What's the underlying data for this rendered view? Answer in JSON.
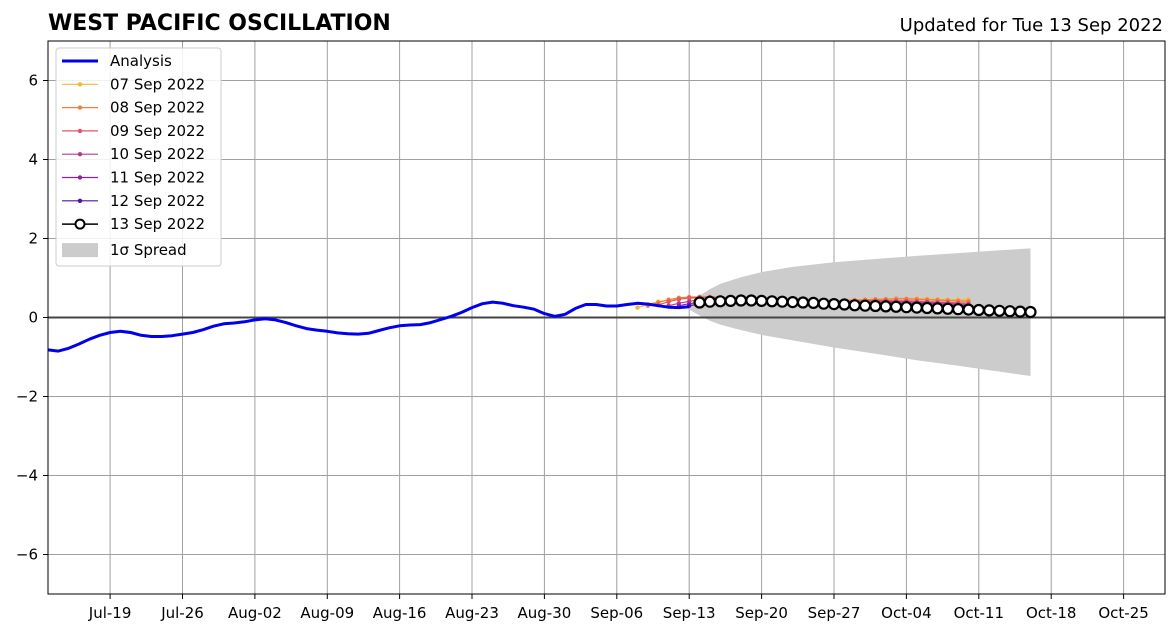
{
  "chart_data": {
    "type": "line",
    "title": "WEST PACIFIC OSCILLATION",
    "subtitle": "Updated for Tue 13 Sep 2022",
    "xlabel": "",
    "ylabel": "",
    "x_range": [
      "2022-07-13",
      "2022-10-29"
    ],
    "ylim": [
      -7,
      7
    ],
    "y_ticks": [
      -6,
      -4,
      -2,
      0,
      2,
      4,
      6
    ],
    "y_tick_labels": [
      "−6",
      "−4",
      "−2",
      "0",
      "2",
      "4",
      "6"
    ],
    "x_ticks": [
      "2022-07-19",
      "2022-07-26",
      "2022-08-02",
      "2022-08-09",
      "2022-08-16",
      "2022-08-23",
      "2022-08-30",
      "2022-09-06",
      "2022-09-13",
      "2022-09-20",
      "2022-09-27",
      "2022-10-04",
      "2022-10-11",
      "2022-10-18",
      "2022-10-25"
    ],
    "x_tick_labels": [
      "Jul-19",
      "Jul-26",
      "Aug-02",
      "Aug-09",
      "Aug-16",
      "Aug-23",
      "Aug-30",
      "Sep-06",
      "Sep-13",
      "Sep-20",
      "Sep-27",
      "Oct-04",
      "Oct-11",
      "Oct-18",
      "Oct-25"
    ],
    "grid": true,
    "legend_position": "top-left",
    "analysis": {
      "name": "Analysis",
      "color": "#0000ee",
      "start_date": "2022-07-13",
      "values": [
        -0.82,
        -0.85,
        -0.78,
        -0.67,
        -0.55,
        -0.45,
        -0.38,
        -0.35,
        -0.38,
        -0.45,
        -0.48,
        -0.48,
        -0.46,
        -0.42,
        -0.38,
        -0.31,
        -0.22,
        -0.16,
        -0.14,
        -0.11,
        -0.06,
        -0.03,
        -0.06,
        -0.13,
        -0.21,
        -0.28,
        -0.32,
        -0.35,
        -0.39,
        -0.41,
        -0.42,
        -0.4,
        -0.33,
        -0.26,
        -0.21,
        -0.19,
        -0.18,
        -0.13,
        -0.05,
        0.03,
        0.13,
        0.25,
        0.35,
        0.39,
        0.36,
        0.3,
        0.26,
        0.21,
        0.1,
        0.03,
        0.08,
        0.23,
        0.33,
        0.33,
        0.29,
        0.29,
        0.33,
        0.36,
        0.34,
        0.3,
        0.26,
        0.25,
        0.27
      ]
    },
    "forecasts": [
      {
        "name": "07 Sep 2022",
        "color": "#f7b733",
        "start_date": "2022-09-08",
        "values": [
          0.25,
          0.33,
          0.4,
          0.44,
          0.47,
          0.48,
          0.48,
          0.47,
          0.46,
          0.45,
          0.44,
          0.43,
          0.42,
          0.41,
          0.4,
          0.39,
          0.39,
          0.4,
          0.41,
          0.42,
          0.43,
          0.44,
          0.45,
          0.46,
          0.47,
          0.48,
          0.48,
          0.48,
          0.47,
          0.46,
          0.45,
          0.45,
          0.45
        ]
      },
      {
        "name": "08 Sep 2022",
        "color": "#f07f3a",
        "start_date": "2022-09-09",
        "values": [
          0.3,
          0.38,
          0.45,
          0.5,
          0.52,
          0.52,
          0.51,
          0.5,
          0.49,
          0.48,
          0.46,
          0.45,
          0.43,
          0.42,
          0.41,
          0.4,
          0.4,
          0.41,
          0.42,
          0.43,
          0.44,
          0.45,
          0.46,
          0.46,
          0.47,
          0.47,
          0.46,
          0.45,
          0.44,
          0.43,
          0.42,
          0.41
        ]
      },
      {
        "name": "09 Sep 2022",
        "color": "#e25565",
        "start_date": "2022-09-10",
        "values": [
          0.32,
          0.4,
          0.46,
          0.5,
          0.52,
          0.52,
          0.51,
          0.5,
          0.49,
          0.48,
          0.47,
          0.45,
          0.44,
          0.42,
          0.41,
          0.4,
          0.4,
          0.4,
          0.41,
          0.42,
          0.42,
          0.43,
          0.43,
          0.42,
          0.42,
          0.41,
          0.4,
          0.39,
          0.38,
          0.37,
          0.36
        ]
      },
      {
        "name": "10 Sep 2022",
        "color": "#b63d8e",
        "start_date": "2022-09-11",
        "values": [
          0.3,
          0.36,
          0.41,
          0.45,
          0.47,
          0.48,
          0.48,
          0.47,
          0.46,
          0.45,
          0.44,
          0.42,
          0.41,
          0.4,
          0.39,
          0.38,
          0.38,
          0.38,
          0.39,
          0.39,
          0.4,
          0.4,
          0.4,
          0.4,
          0.39,
          0.38,
          0.37,
          0.36,
          0.34,
          0.33
        ]
      },
      {
        "name": "11 Sep 2022",
        "color": "#8a22a8",
        "start_date": "2022-09-12",
        "values": [
          0.3,
          0.35,
          0.39,
          0.42,
          0.44,
          0.45,
          0.45,
          0.44,
          0.43,
          0.42,
          0.41,
          0.4,
          0.39,
          0.38,
          0.37,
          0.36,
          0.36,
          0.36,
          0.36,
          0.37,
          0.37,
          0.37,
          0.36,
          0.36,
          0.35,
          0.34,
          0.33,
          0.31,
          0.3
        ]
      },
      {
        "name": "12 Sep 2022",
        "color": "#52119e",
        "start_date": "2022-09-13",
        "values": [
          0.3,
          0.34,
          0.37,
          0.4,
          0.41,
          0.42,
          0.42,
          0.41,
          0.4,
          0.39,
          0.38,
          0.37,
          0.36,
          0.35,
          0.34,
          0.33,
          0.33,
          0.32,
          0.32,
          0.32,
          0.32,
          0.31,
          0.31,
          0.3,
          0.29,
          0.28,
          0.27,
          0.26
        ]
      },
      {
        "name": "13 Sep 2022",
        "color": "#000000",
        "marker": "open-circle",
        "start_date": "2022-09-14",
        "values": [
          0.38,
          0.4,
          0.41,
          0.42,
          0.43,
          0.43,
          0.42,
          0.41,
          0.4,
          0.39,
          0.38,
          0.37,
          0.35,
          0.34,
          0.33,
          0.31,
          0.3,
          0.29,
          0.28,
          0.27,
          0.26,
          0.25,
          0.24,
          0.23,
          0.22,
          0.21,
          0.2,
          0.19,
          0.18,
          0.17,
          0.16,
          0.15,
          0.14
        ]
      }
    ],
    "spread": {
      "name": "1σ Spread",
      "color": "#cccccc",
      "dates": [
        "2022-09-13",
        "2022-09-14",
        "2022-09-15",
        "2022-09-16",
        "2022-09-18",
        "2022-09-20",
        "2022-09-23",
        "2022-09-27",
        "2022-10-01",
        "2022-10-05",
        "2022-10-09",
        "2022-10-13",
        "2022-10-16"
      ],
      "upper": [
        0.3,
        0.55,
        0.72,
        0.85,
        1.02,
        1.15,
        1.28,
        1.4,
        1.48,
        1.56,
        1.63,
        1.7,
        1.75
      ],
      "lower": [
        0.2,
        0.05,
        -0.08,
        -0.18,
        -0.32,
        -0.44,
        -0.58,
        -0.76,
        -0.92,
        -1.08,
        -1.22,
        -1.37,
        -1.48
      ]
    }
  }
}
